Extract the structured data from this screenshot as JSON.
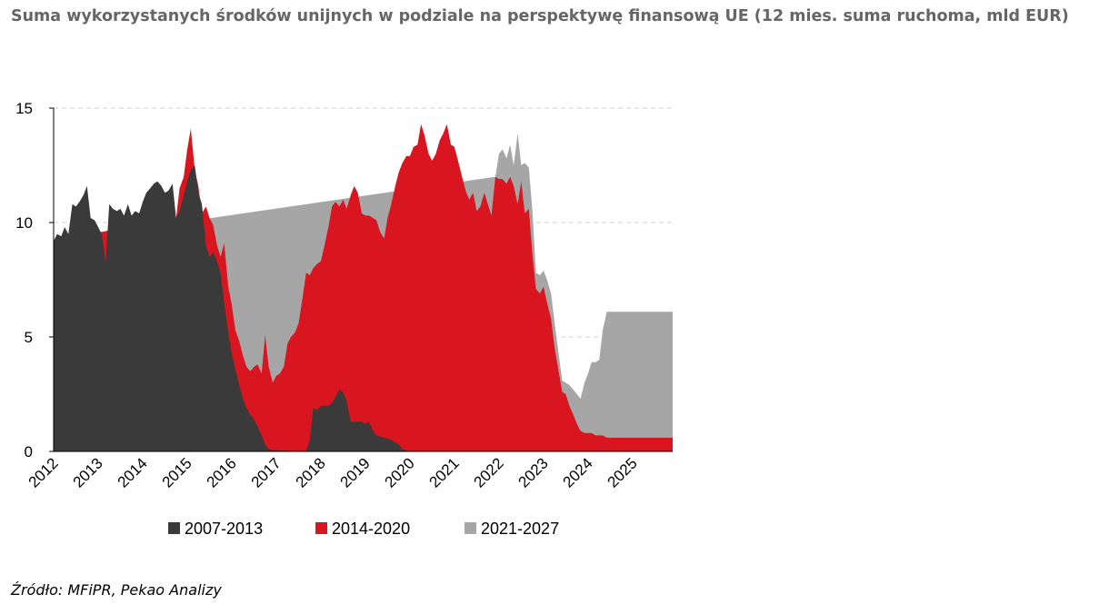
{
  "chart_data": {
    "type": "area",
    "title": "Suma wykorzystanych środków unijnych w podziale na perspektywę finansową UE (12 mies. suma ruchoma, mld EUR)",
    "source": "Źródło: MFiPR, Pekao Analizy",
    "ylim": [
      0,
      15
    ],
    "yticks": [
      "0",
      "5",
      "10",
      "15"
    ],
    "xlim": [
      2012.0,
      2025.9
    ],
    "xticks": [
      "2012",
      "2013",
      "2014",
      "2015",
      "2016",
      "2017",
      "2018",
      "2019",
      "2020",
      "2021",
      "2022",
      "2023",
      "2024",
      "2025"
    ],
    "grid": "horizontal dashed",
    "stacked": true,
    "legend_position": "bottom",
    "colors": {
      "2007-2013": "#3a3a3a",
      "2014-2020": "#d9161f",
      "2021-2027": "#a6a6a6"
    },
    "series": [
      {
        "name": "2007-2013",
        "points": [
          [
            2012.0,
            9.2
          ],
          [
            2012.08,
            9.5
          ],
          [
            2012.17,
            9.4
          ],
          [
            2012.25,
            9.8
          ],
          [
            2012.33,
            9.5
          ],
          [
            2012.42,
            10.8
          ],
          [
            2012.5,
            10.7
          ],
          [
            2012.58,
            10.9
          ],
          [
            2012.67,
            11.2
          ],
          [
            2012.75,
            11.6
          ],
          [
            2012.83,
            10.2
          ],
          [
            2012.92,
            10.1
          ],
          [
            2013.0,
            9.8
          ],
          [
            2013.08,
            9.5
          ],
          [
            2013.17,
            8.3
          ],
          [
            2013.25,
            10.8
          ],
          [
            2013.33,
            10.6
          ],
          [
            2013.42,
            10.5
          ],
          [
            2013.5,
            10.6
          ],
          [
            2013.58,
            10.3
          ],
          [
            2013.67,
            10.8
          ],
          [
            2013.75,
            10.3
          ],
          [
            2013.83,
            10.5
          ],
          [
            2013.92,
            10.4
          ],
          [
            2014.0,
            10.9
          ],
          [
            2014.08,
            11.3
          ],
          [
            2014.17,
            11.5
          ],
          [
            2014.25,
            11.7
          ],
          [
            2014.33,
            11.8
          ],
          [
            2014.42,
            11.6
          ],
          [
            2014.5,
            11.3
          ],
          [
            2014.58,
            11.4
          ],
          [
            2014.67,
            11.7
          ],
          [
            2014.75,
            10.2
          ],
          [
            2014.83,
            10.5
          ],
          [
            2014.92,
            11.2
          ],
          [
            2015.0,
            11.8
          ],
          [
            2015.08,
            12.3
          ],
          [
            2015.17,
            12.5
          ],
          [
            2015.25,
            11.3
          ],
          [
            2015.33,
            10.8
          ],
          [
            2015.42,
            9.0
          ],
          [
            2015.5,
            8.5
          ],
          [
            2015.58,
            8.7
          ],
          [
            2015.67,
            8.3
          ],
          [
            2015.75,
            7.8
          ],
          [
            2015.83,
            6.5
          ],
          [
            2015.92,
            5.2
          ],
          [
            2016.0,
            4.3
          ],
          [
            2016.08,
            3.6
          ],
          [
            2016.17,
            2.9
          ],
          [
            2016.25,
            2.3
          ],
          [
            2016.33,
            1.9
          ],
          [
            2016.42,
            1.6
          ],
          [
            2016.5,
            1.4
          ],
          [
            2016.58,
            1.1
          ],
          [
            2016.67,
            0.7
          ],
          [
            2016.75,
            0.3
          ],
          [
            2016.83,
            0.1
          ],
          [
            2016.92,
            0.05
          ],
          [
            2017.0,
            0.05
          ],
          [
            2017.5,
            0.0
          ],
          [
            2017.67,
            0.0
          ],
          [
            2017.75,
            0.5
          ],
          [
            2017.83,
            1.9
          ],
          [
            2017.92,
            1.8
          ],
          [
            2018.0,
            2.0
          ],
          [
            2018.17,
            2.0
          ],
          [
            2018.25,
            2.1
          ],
          [
            2018.33,
            2.4
          ],
          [
            2018.42,
            2.7
          ],
          [
            2018.5,
            2.6
          ],
          [
            2018.58,
            2.2
          ],
          [
            2018.67,
            1.3
          ],
          [
            2018.83,
            1.3
          ],
          [
            2018.92,
            1.3
          ],
          [
            2019.0,
            1.2
          ],
          [
            2019.08,
            1.3
          ],
          [
            2019.17,
            0.9
          ],
          [
            2019.25,
            0.7
          ],
          [
            2019.42,
            0.6
          ],
          [
            2019.58,
            0.5
          ],
          [
            2019.75,
            0.3
          ],
          [
            2019.83,
            0.1
          ],
          [
            2019.92,
            0.05
          ],
          [
            2020.0,
            0.0
          ],
          [
            2025.9,
            0.0
          ]
        ]
      },
      {
        "name": "2014-2020",
        "points": [
          [
            2012.0,
            9.2
          ],
          [
            2014.75,
            10.2
          ],
          [
            2014.83,
            11.5
          ],
          [
            2014.92,
            12.0
          ],
          [
            2015.0,
            13.2
          ],
          [
            2015.08,
            14.1
          ],
          [
            2015.17,
            12.3
          ],
          [
            2015.25,
            11.6
          ],
          [
            2015.33,
            10.4
          ],
          [
            2015.42,
            10.7
          ],
          [
            2015.5,
            10.2
          ],
          [
            2015.58,
            9.9
          ],
          [
            2015.67,
            9.0
          ],
          [
            2015.75,
            8.5
          ],
          [
            2015.83,
            9.1
          ],
          [
            2015.92,
            7.2
          ],
          [
            2016.0,
            6.4
          ],
          [
            2016.08,
            5.3
          ],
          [
            2016.17,
            4.8
          ],
          [
            2016.25,
            4.2
          ],
          [
            2016.33,
            3.7
          ],
          [
            2016.42,
            3.5
          ],
          [
            2016.5,
            3.7
          ],
          [
            2016.58,
            3.8
          ],
          [
            2016.67,
            3.4
          ],
          [
            2016.75,
            5.1
          ],
          [
            2016.83,
            3.7
          ],
          [
            2016.92,
            3.0
          ],
          [
            2017.0,
            3.3
          ],
          [
            2017.08,
            3.4
          ],
          [
            2017.17,
            3.7
          ],
          [
            2017.25,
            4.7
          ],
          [
            2017.33,
            5.0
          ],
          [
            2017.42,
            5.2
          ],
          [
            2017.5,
            5.6
          ],
          [
            2017.58,
            6.6
          ],
          [
            2017.67,
            7.8
          ],
          [
            2017.75,
            7.7
          ],
          [
            2017.83,
            8.0
          ],
          [
            2017.92,
            8.2
          ],
          [
            2018.0,
            8.3
          ],
          [
            2018.08,
            9.0
          ],
          [
            2018.17,
            9.8
          ],
          [
            2018.25,
            10.7
          ],
          [
            2018.33,
            10.9
          ],
          [
            2018.42,
            10.7
          ],
          [
            2018.5,
            11.0
          ],
          [
            2018.58,
            10.6
          ],
          [
            2018.67,
            11.2
          ],
          [
            2018.75,
            11.6
          ],
          [
            2018.83,
            11.3
          ],
          [
            2018.92,
            10.4
          ],
          [
            2019.0,
            10.3
          ],
          [
            2019.08,
            10.3
          ],
          [
            2019.17,
            10.2
          ],
          [
            2019.25,
            10.1
          ],
          [
            2019.33,
            9.6
          ],
          [
            2019.42,
            9.3
          ],
          [
            2019.5,
            10.2
          ],
          [
            2019.58,
            10.8
          ],
          [
            2019.67,
            11.6
          ],
          [
            2019.75,
            12.2
          ],
          [
            2019.83,
            12.6
          ],
          [
            2019.92,
            12.9
          ],
          [
            2020.0,
            12.9
          ],
          [
            2020.08,
            13.3
          ],
          [
            2020.17,
            13.4
          ],
          [
            2020.25,
            14.3
          ],
          [
            2020.33,
            13.8
          ],
          [
            2020.42,
            13.0
          ],
          [
            2020.5,
            12.7
          ],
          [
            2020.58,
            13.0
          ],
          [
            2020.67,
            13.6
          ],
          [
            2020.75,
            13.9
          ],
          [
            2020.83,
            14.3
          ],
          [
            2020.92,
            13.4
          ],
          [
            2021.0,
            13.3
          ],
          [
            2021.08,
            12.7
          ],
          [
            2021.17,
            12.0
          ],
          [
            2021.25,
            11.4
          ],
          [
            2021.33,
            11.0
          ],
          [
            2021.42,
            11.3
          ],
          [
            2021.5,
            10.5
          ],
          [
            2021.58,
            10.7
          ],
          [
            2021.67,
            11.3
          ],
          [
            2021.75,
            10.8
          ],
          [
            2021.83,
            10.3
          ],
          [
            2021.92,
            12.0
          ],
          [
            2022.0,
            11.9
          ],
          [
            2022.08,
            11.9
          ],
          [
            2022.17,
            11.7
          ],
          [
            2022.25,
            12.0
          ],
          [
            2022.33,
            11.6
          ],
          [
            2022.42,
            10.8
          ],
          [
            2022.5,
            11.8
          ],
          [
            2022.58,
            10.4
          ],
          [
            2022.67,
            10.6
          ],
          [
            2022.75,
            8.6
          ],
          [
            2022.83,
            7.1
          ],
          [
            2022.92,
            6.9
          ],
          [
            2023.0,
            7.2
          ],
          [
            2023.08,
            6.5
          ],
          [
            2023.17,
            5.8
          ],
          [
            2023.25,
            4.5
          ],
          [
            2023.33,
            3.6
          ],
          [
            2023.42,
            2.6
          ],
          [
            2023.5,
            2.5
          ],
          [
            2023.58,
            2.0
          ],
          [
            2023.67,
            1.6
          ],
          [
            2023.75,
            1.2
          ],
          [
            2023.83,
            0.9
          ],
          [
            2023.92,
            0.8
          ],
          [
            2024.0,
            0.8
          ],
          [
            2024.08,
            0.8
          ],
          [
            2024.17,
            0.7
          ],
          [
            2024.25,
            0.7
          ],
          [
            2024.33,
            0.7
          ],
          [
            2024.42,
            0.6
          ],
          [
            2024.5,
            0.6
          ],
          [
            2025.9,
            0.6
          ]
        ]
      },
      {
        "name": "2021-2027",
        "points": [
          [
            2012.0,
            9.2
          ],
          [
            2021.92,
            12.0
          ],
          [
            2022.0,
            13.0
          ],
          [
            2022.08,
            13.2
          ],
          [
            2022.17,
            12.8
          ],
          [
            2022.25,
            13.4
          ],
          [
            2022.33,
            12.5
          ],
          [
            2022.42,
            13.9
          ],
          [
            2022.5,
            12.5
          ],
          [
            2022.58,
            12.6
          ],
          [
            2022.67,
            12.4
          ],
          [
            2022.75,
            10.5
          ],
          [
            2022.83,
            7.8
          ],
          [
            2022.92,
            7.7
          ],
          [
            2023.0,
            7.9
          ],
          [
            2023.08,
            7.5
          ],
          [
            2023.17,
            6.9
          ],
          [
            2023.25,
            5.6
          ],
          [
            2023.33,
            4.4
          ],
          [
            2023.42,
            3.1
          ],
          [
            2023.5,
            3.0
          ],
          [
            2023.58,
            2.9
          ],
          [
            2023.67,
            2.7
          ],
          [
            2023.75,
            2.5
          ],
          [
            2023.83,
            2.3
          ],
          [
            2023.92,
            3.0
          ],
          [
            2024.0,
            3.4
          ],
          [
            2024.08,
            3.9
          ],
          [
            2024.17,
            3.9
          ],
          [
            2024.25,
            4.0
          ],
          [
            2024.33,
            5.3
          ],
          [
            2024.42,
            6.1
          ],
          [
            2024.5,
            6.1
          ],
          [
            2025.9,
            6.1
          ]
        ]
      }
    ]
  }
}
